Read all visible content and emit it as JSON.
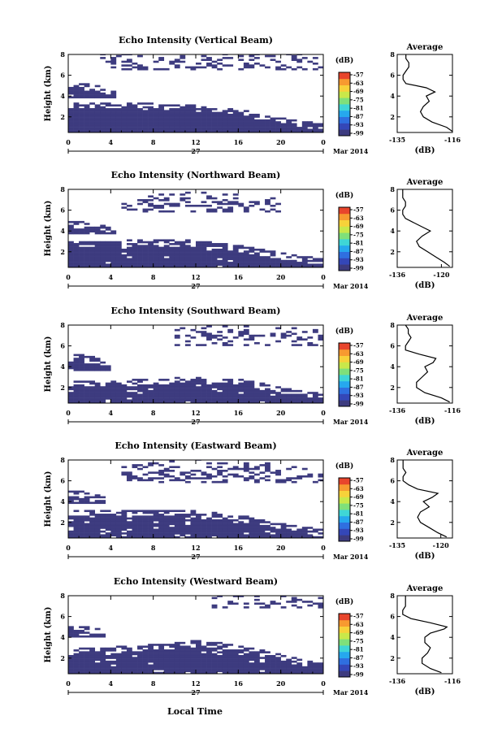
{
  "figure": {
    "xaxis_title": "Local Time",
    "date_label": "Mar 2014",
    "day_label": "27",
    "colorbar_unit": "(dB)",
    "colorbar_ticks": [
      "-57",
      "-63",
      "-69",
      "-75",
      "-81",
      "-87",
      "-93",
      "-99"
    ],
    "colormap": [
      "#3d3b7f",
      "#3447b8",
      "#2f6fe0",
      "#26a8ee",
      "#3fd6d6",
      "#7fe07a",
      "#c9e84a",
      "#f7d23a",
      "#f79a30",
      "#e8452c"
    ],
    "profile_title": "Average",
    "profile_xunit": "(dB)"
  },
  "chart_data": [
    {
      "type": "heatmap",
      "title": "Echo Intensity (Vertical Beam)",
      "ylabel": "Height (km)",
      "xlabel": "Local Time",
      "xticks": [
        "0",
        "4",
        "8",
        "12",
        "16",
        "20",
        "0"
      ],
      "xlim": [
        0,
        24
      ],
      "yticks": [
        "2",
        "4",
        "6",
        "8"
      ],
      "ylim": [
        0.5,
        8
      ],
      "echo_layers": [
        {
          "name": "lower layer",
          "t_start": 0,
          "t_end": 24,
          "bottom_km": 0.5,
          "top_km": [
            3.3,
            3.3,
            3.2,
            3.0,
            2.6,
            1.8,
            1.2
          ],
          "fill": 1.0
        },
        {
          "name": "low cloud",
          "t_start": 0,
          "t_end": 4.5,
          "bottom_km": 3.8,
          "top_km": [
            5.2,
            5.0,
            4.3
          ],
          "fill": 0.9
        },
        {
          "name": "upper echoes",
          "t_start": 3,
          "t_end": 24,
          "bottom_km": 6.5,
          "top_km": [
            8,
            8,
            8,
            8
          ],
          "fill": 0.3
        }
      ],
      "colorbar": {
        "label": "(dB)",
        "min": -99,
        "max": -54
      },
      "profile": {
        "title": "Average",
        "xlabel": "(dB)",
        "xticks": [
          "-135",
          "-116"
        ],
        "xlim": [
          -135,
          -116
        ],
        "yticks": [
          "2",
          "4",
          "6",
          "8"
        ],
        "height_km": [
          0.6,
          1.0,
          1.5,
          2.0,
          2.5,
          3.0,
          3.5,
          4.0,
          4.4,
          4.8,
          5.2,
          5.6,
          6.0,
          6.4,
          6.8,
          7.2,
          7.6,
          8.0
        ],
        "value_db": [
          -116,
          -118,
          -123,
          -126,
          -127,
          -126,
          -124,
          -125,
          -122,
          -125,
          -132,
          -133,
          -133,
          -132,
          -131,
          -131,
          -132,
          -132
        ]
      }
    },
    {
      "type": "heatmap",
      "title": "Echo Intensity (Northward Beam)",
      "ylabel": "Height (km)",
      "xlabel": "Local Time",
      "xticks": [
        "0",
        "4",
        "8",
        "12",
        "16",
        "20",
        "0"
      ],
      "xlim": [
        0,
        24
      ],
      "yticks": [
        "2",
        "4",
        "6",
        "8"
      ],
      "ylim": [
        0.5,
        8
      ],
      "echo_layers": [
        {
          "name": "lower layer",
          "t_start": 0,
          "t_end": 24,
          "bottom_km": 0.5,
          "top_km": [
            3.0,
            3.0,
            3.1,
            3.0,
            2.5,
            1.8,
            1.2
          ],
          "fill": 0.97
        },
        {
          "name": "low cloud",
          "t_start": 0,
          "t_end": 4.5,
          "bottom_km": 3.7,
          "top_km": [
            4.9,
            4.7,
            4.1
          ],
          "fill": 0.9
        },
        {
          "name": "upper echoes",
          "t_start": 5,
          "t_end": 20,
          "bottom_km": 5.8,
          "top_km": [
            7.5,
            7.8,
            7.5,
            7.0
          ],
          "fill": 0.35
        }
      ],
      "colorbar": {
        "label": "(dB)",
        "min": -99,
        "max": -54
      },
      "profile": {
        "title": "Average",
        "xlabel": "(dB)",
        "xticks": [
          "-136",
          "-120"
        ],
        "xlim": [
          -136,
          -116
        ],
        "yticks": [
          "2",
          "4",
          "6",
          "8"
        ],
        "height_km": [
          0.6,
          1.0,
          1.5,
          2.0,
          2.5,
          3.0,
          3.5,
          4.0,
          4.4,
          4.8,
          5.2,
          5.6,
          6.0,
          6.4,
          6.8,
          7.2,
          7.6,
          8.0
        ],
        "value_db": [
          -117,
          -119,
          -122,
          -125,
          -128,
          -129,
          -127,
          -124,
          -127,
          -130,
          -133,
          -134,
          -134,
          -133,
          -133,
          -134,
          -134,
          -134
        ]
      }
    },
    {
      "type": "heatmap",
      "title": "Echo Intensity (Southward Beam)",
      "ylabel": "Height (km)",
      "xlabel": "Local Time",
      "xticks": [
        "0",
        "4",
        "8",
        "12",
        "16",
        "20",
        "0"
      ],
      "xlim": [
        0,
        24
      ],
      "yticks": [
        "2",
        "4",
        "6",
        "8"
      ],
      "ylim": [
        0.5,
        8
      ],
      "echo_layers": [
        {
          "name": "lower layer",
          "t_start": 0,
          "t_end": 24,
          "bottom_km": 0.5,
          "top_km": [
            2.6,
            2.6,
            2.8,
            2.9,
            2.7,
            2.0,
            1.3
          ],
          "fill": 0.95
        },
        {
          "name": "low cloud",
          "t_start": 0,
          "t_end": 4,
          "bottom_km": 3.6,
          "top_km": [
            5.2,
            5.0,
            4.2
          ],
          "fill": 0.9
        },
        {
          "name": "upper echoes",
          "t_start": 10,
          "t_end": 24,
          "bottom_km": 6.0,
          "top_km": [
            8,
            8,
            7.8,
            7.5
          ],
          "fill": 0.3
        }
      ],
      "colorbar": {
        "label": "(dB)",
        "min": -99,
        "max": -54
      },
      "profile": {
        "title": "Average",
        "xlabel": "(dB)",
        "xticks": [
          "-136",
          "-116"
        ],
        "xlim": [
          -136,
          -116
        ],
        "yticks": [
          "2",
          "4",
          "6",
          "8"
        ],
        "height_km": [
          0.6,
          1.0,
          1.5,
          2.0,
          2.5,
          3.0,
          3.5,
          4.0,
          4.4,
          4.8,
          5.2,
          5.6,
          6.0,
          6.4,
          6.8,
          7.2,
          7.6,
          8.0
        ],
        "value_db": [
          -117,
          -120,
          -126,
          -129,
          -129,
          -127,
          -125,
          -126,
          -123,
          -122,
          -128,
          -133,
          -133,
          -132,
          -131,
          -132,
          -132,
          -133
        ]
      }
    },
    {
      "type": "heatmap",
      "title": "Echo Intensity (Eastward Beam)",
      "ylabel": "Height (km)",
      "xlabel": "Local Time",
      "xticks": [
        "0",
        "4",
        "8",
        "12",
        "16",
        "20",
        "0"
      ],
      "xlim": [
        0,
        24
      ],
      "yticks": [
        "2",
        "4",
        "6",
        "8"
      ],
      "ylim": [
        0.5,
        8
      ],
      "echo_layers": [
        {
          "name": "lower layer",
          "t_start": 0,
          "t_end": 24,
          "bottom_km": 0.5,
          "top_km": [
            3.1,
            3.1,
            3.2,
            3.0,
            2.6,
            1.8,
            1.2
          ],
          "fill": 0.95
        },
        {
          "name": "low cloud",
          "t_start": 0,
          "t_end": 3.5,
          "bottom_km": 3.8,
          "top_km": [
            5.0,
            4.8,
            4.2
          ],
          "fill": 0.9
        },
        {
          "name": "upper echoes",
          "t_start": 5,
          "t_end": 24,
          "bottom_km": 5.8,
          "top_km": [
            7.5,
            8,
            7.8,
            7.0
          ],
          "fill": 0.35
        }
      ],
      "colorbar": {
        "label": "(dB)",
        "min": -99,
        "max": -54
      },
      "profile": {
        "title": "Average",
        "xlabel": "(dB)",
        "xticks": [
          "-135",
          "-120"
        ],
        "xlim": [
          -135,
          -116
        ],
        "yticks": [
          "2",
          "4",
          "6",
          "8"
        ],
        "height_km": [
          0.6,
          1.0,
          1.5,
          2.0,
          2.5,
          3.0,
          3.5,
          4.0,
          4.4,
          4.8,
          5.2,
          5.6,
          6.0,
          6.4,
          6.8,
          7.2,
          7.6,
          8.0
        ],
        "value_db": [
          -118,
          -121,
          -124,
          -127,
          -128,
          -127,
          -124,
          -126,
          -123,
          -121,
          -128,
          -131,
          -133,
          -133,
          -132,
          -133,
          -133,
          -133
        ]
      }
    },
    {
      "type": "heatmap",
      "title": "Echo Intensity (Westward Beam)",
      "ylabel": "Height (km)",
      "xlabel": "Local Time",
      "xticks": [
        "0",
        "4",
        "8",
        "12",
        "16",
        "20",
        "0"
      ],
      "xlim": [
        0,
        24
      ],
      "yticks": [
        "2",
        "4",
        "6",
        "8"
      ],
      "ylim": [
        0.5,
        8
      ],
      "echo_layers": [
        {
          "name": "lower layer",
          "t_start": 0,
          "t_end": 24,
          "bottom_km": 0.5,
          "top_km": [
            2.8,
            3.0,
            3.3,
            3.6,
            3.2,
            2.2,
            1.3
          ],
          "fill": 0.96
        },
        {
          "name": "low cloud",
          "t_start": 0,
          "t_end": 3.5,
          "bottom_km": 4.0,
          "top_km": [
            5.3,
            5.0,
            4.4
          ],
          "fill": 0.9
        },
        {
          "name": "upper echoes",
          "t_start": 13,
          "t_end": 24,
          "bottom_km": 6.8,
          "top_km": [
            8,
            8,
            7.8
          ],
          "fill": 0.3
        }
      ],
      "colorbar": {
        "label": "(dB)",
        "min": -99,
        "max": -54
      },
      "profile": {
        "title": "Average",
        "xlabel": "(dB)",
        "xticks": [
          "-136",
          "-116"
        ],
        "xlim": [
          -136,
          -116
        ],
        "yticks": [
          "2",
          "4",
          "6",
          "8"
        ],
        "height_km": [
          0.6,
          1.0,
          1.5,
          2.0,
          2.5,
          3.0,
          3.5,
          4.0,
          4.4,
          4.8,
          5.0,
          5.4,
          5.8,
          6.2,
          6.6,
          7.0,
          7.4,
          8.0
        ],
        "value_db": [
          -120,
          -124,
          -127,
          -127,
          -125,
          -124,
          -126,
          -126,
          -124,
          -119,
          -118,
          -124,
          -131,
          -134,
          -134,
          -133,
          -133,
          -133
        ]
      }
    }
  ]
}
